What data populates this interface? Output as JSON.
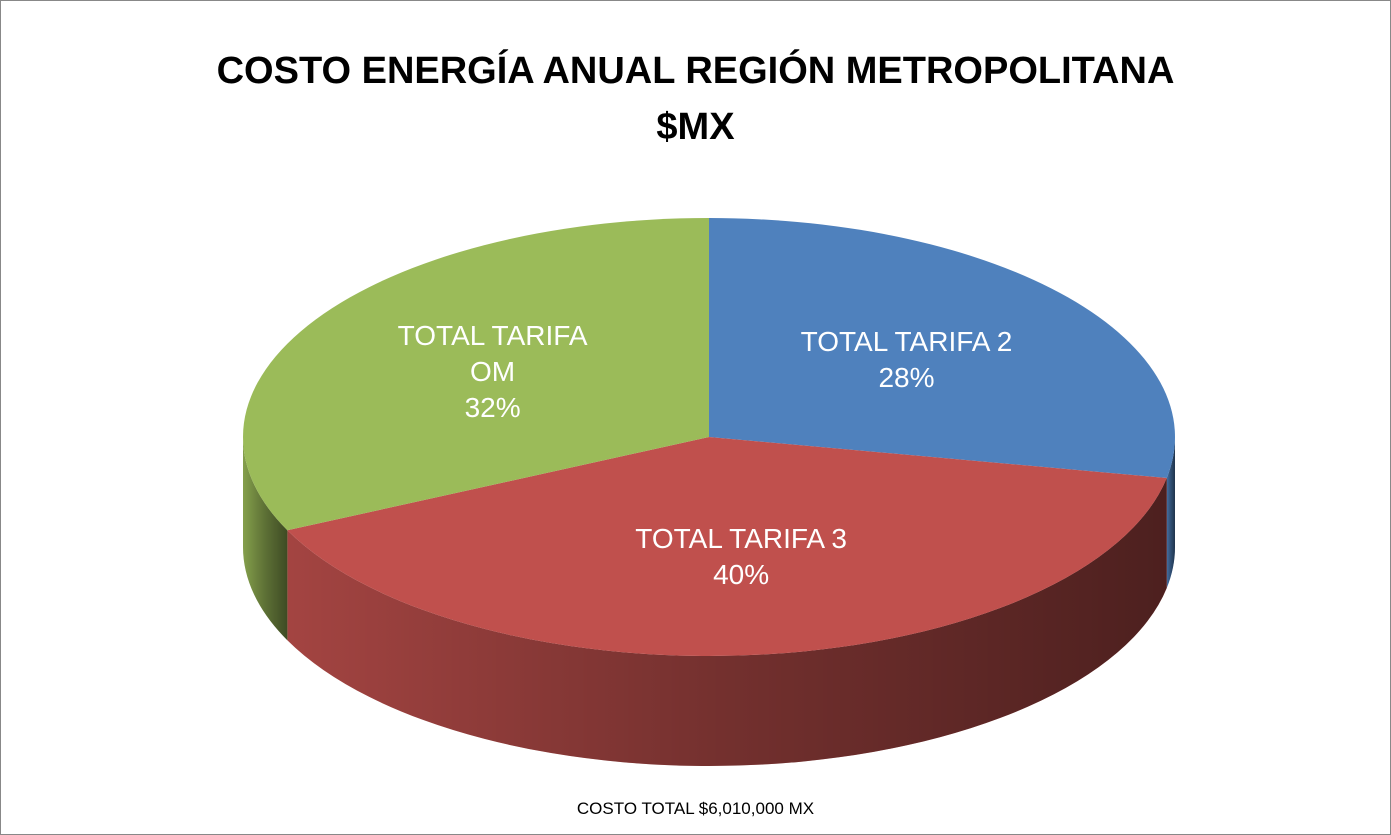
{
  "chart_data": {
    "type": "pie",
    "title": "COSTO ENERGÍA ANUAL REGIÓN METROPOLITANA\n$MX",
    "categories": [
      "TOTAL TARIFA 2",
      "TOTAL TARIFA 3",
      "TOTAL TARIFA OM"
    ],
    "values": [
      28,
      40,
      32
    ],
    "value_labels": [
      "28%",
      "40%",
      "32%"
    ],
    "colors": [
      "#4f81bd",
      "#c0504d",
      "#9bbb59"
    ],
    "annotation": "COSTO TOTAL $6,010,000 MX"
  }
}
